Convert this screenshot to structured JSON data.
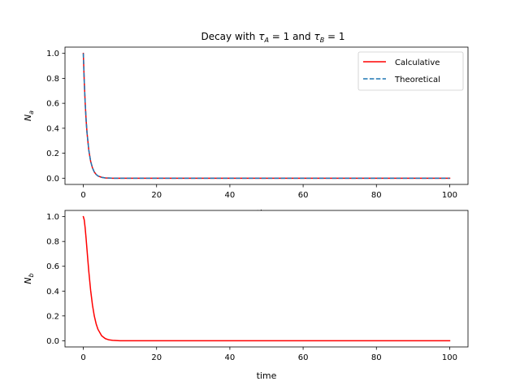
{
  "title": "Decay with τ_A = 1 and τ_B = 1",
  "title_parts": {
    "prefix": "Decay with ",
    "tau": "τ",
    "sub_a": "A",
    "middle_a": " = 1 and ",
    "sub_b": "B",
    "suffix_b": " = 1"
  },
  "colors": {
    "calculative": "#ff0000",
    "theoretical": "#1f77b4",
    "axes": "#000000",
    "background": "#ffffff"
  },
  "chart_data": [
    {
      "type": "line",
      "title": "Decay with τ_A = 1 and τ_B = 1",
      "xlabel": "time",
      "ylabel": "N_a",
      "ylabel_parts": {
        "main": "N",
        "sub": "a"
      },
      "xlim": [
        -5,
        105
      ],
      "ylim": [
        -0.05,
        1.05
      ],
      "xticks": [
        "0",
        "20",
        "40",
        "60",
        "80",
        "100"
      ],
      "xtick_values": [
        0,
        20,
        40,
        60,
        80,
        100
      ],
      "yticks": [
        "0.0",
        "0.2",
        "0.4",
        "0.6",
        "0.8",
        "1.0"
      ],
      "ytick_values": [
        0.0,
        0.2,
        0.4,
        0.6,
        0.8,
        1.0
      ],
      "grid": false,
      "legend_position": "top-right",
      "series": [
        {
          "name": "Calculative",
          "style": "solid",
          "color": "#ff0000",
          "x": [
            0,
            0.25,
            0.5,
            0.75,
            1,
            1.5,
            2,
            2.5,
            3,
            3.5,
            4,
            5,
            6,
            7,
            8,
            10,
            15,
            20,
            40,
            60,
            80,
            100
          ],
          "y": [
            1.0,
            0.779,
            0.607,
            0.472,
            0.368,
            0.223,
            0.135,
            0.082,
            0.05,
            0.03,
            0.018,
            0.007,
            0.002,
            0.001,
            0.0,
            0.0,
            0.0,
            0.0,
            0.0,
            0.0,
            0.0,
            0.0
          ]
        },
        {
          "name": "Theoretical",
          "style": "dashed",
          "color": "#1f77b4",
          "x": [
            0,
            0.25,
            0.5,
            0.75,
            1,
            1.5,
            2,
            2.5,
            3,
            3.5,
            4,
            5,
            6,
            7,
            8,
            10,
            15,
            20,
            40,
            60,
            80,
            100
          ],
          "y": [
            1.0,
            0.779,
            0.607,
            0.472,
            0.368,
            0.223,
            0.135,
            0.082,
            0.05,
            0.03,
            0.018,
            0.007,
            0.002,
            0.001,
            0.0,
            0.0,
            0.0,
            0.0,
            0.0,
            0.0,
            0.0,
            0.0
          ]
        }
      ]
    },
    {
      "type": "line",
      "title": "",
      "xlabel": "time",
      "ylabel": "N_b",
      "ylabel_parts": {
        "main": "N",
        "sub": "b"
      },
      "xlim": [
        -5,
        105
      ],
      "ylim": [
        -0.05,
        1.05
      ],
      "xticks": [
        "0",
        "20",
        "40",
        "60",
        "80",
        "100"
      ],
      "xtick_values": [
        0,
        20,
        40,
        60,
        80,
        100
      ],
      "yticks": [
        "0.0",
        "0.2",
        "0.4",
        "0.6",
        "0.8",
        "1.0"
      ],
      "ytick_values": [
        0.0,
        0.2,
        0.4,
        0.6,
        0.8,
        1.0
      ],
      "grid": false,
      "series": [
        {
          "style": "solid",
          "color": "#ff0000",
          "x": [
            0,
            0.25,
            0.5,
            0.75,
            1,
            1.25,
            1.5,
            2,
            2.5,
            3,
            3.5,
            4,
            5,
            6,
            7,
            8,
            10,
            15,
            20,
            40,
            60,
            80,
            100
          ],
          "y": [
            1.0,
            0.974,
            0.91,
            0.827,
            0.736,
            0.645,
            0.558,
            0.406,
            0.287,
            0.199,
            0.136,
            0.092,
            0.04,
            0.017,
            0.007,
            0.003,
            0.0,
            0.0,
            0.0,
            0.0,
            0.0,
            0.0,
            0.0
          ]
        }
      ]
    }
  ]
}
